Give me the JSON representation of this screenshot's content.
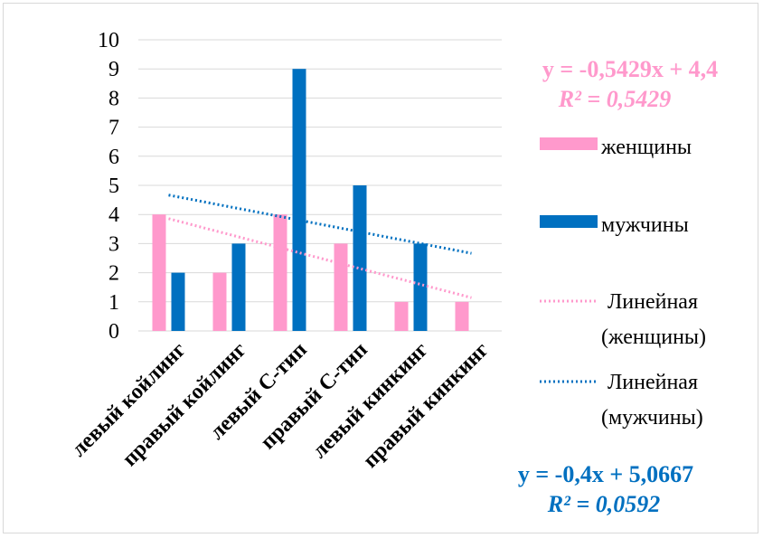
{
  "chart_data": {
    "type": "bar",
    "categories": [
      "левый койлинг",
      "правый койлинг",
      "левый С-тип",
      "правый С-тип",
      "левый кинкинг",
      "правый кинкинг"
    ],
    "series": [
      {
        "name": "женщины",
        "values": [
          4,
          2,
          4,
          3,
          1,
          1
        ],
        "color": "#ff99cc"
      },
      {
        "name": "мужчины",
        "values": [
          2,
          3,
          9,
          5,
          3,
          0
        ],
        "color": "#0070c0"
      }
    ],
    "trendlines": [
      {
        "name": "Линейная (женщины)",
        "name_line1": "Линейная",
        "name_line2": "(женщины)",
        "type": "linear",
        "style": "dotted",
        "color": "#ff99cc",
        "slope": -0.5429,
        "intercept": 4.4,
        "equation": "y = -0,5429x + 4,4",
        "r2": "R² = 0,5429"
      },
      {
        "name": "Линейная (мужчины)",
        "name_line1": "Линейная",
        "name_line2": "(мужчины)",
        "type": "linear",
        "style": "dotted",
        "color": "#0070c0",
        "slope": -0.4,
        "intercept": 5.0667,
        "equation": "y = -0,4x + 5,0667",
        "r2": "R² = 0,0592"
      }
    ],
    "ylim": [
      0,
      10
    ],
    "yticks": [
      0,
      1,
      2,
      3,
      4,
      5,
      6,
      7,
      8,
      9,
      10
    ],
    "grid": true,
    "legend_position": "right"
  }
}
